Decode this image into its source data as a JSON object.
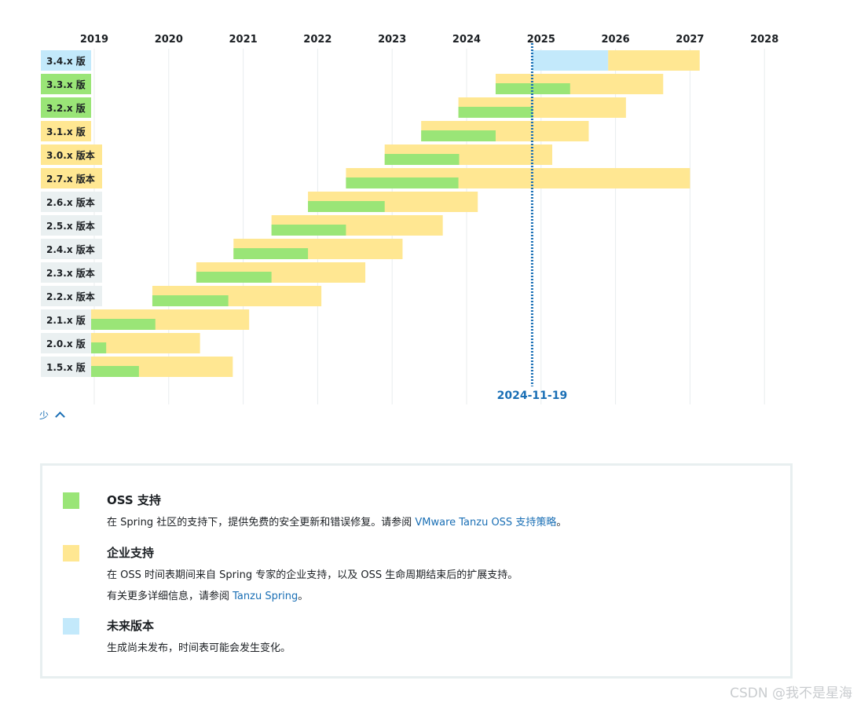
{
  "chart_data": {
    "type": "gantt",
    "years": [
      "2019",
      "2020",
      "2021",
      "2022",
      "2023",
      "2024",
      "2025",
      "2026",
      "2027",
      "2028"
    ],
    "today": {
      "label": "2024-11-19",
      "value": 2024.88
    },
    "rows": [
      {
        "label": "3.4.x 版",
        "label_color": "#c3e9fb",
        "future": [
          2024.88,
          2025.9
        ],
        "enterprise": [
          2025.9,
          2027.13
        ]
      },
      {
        "label": "3.3.x 版",
        "label_color": "#9ae577",
        "oss": [
          2024.39,
          2025.39
        ],
        "enterprise": [
          2024.39,
          2026.64
        ]
      },
      {
        "label": "3.2.x 版",
        "label_color": "#9ae577",
        "oss": [
          2023.89,
          2024.89
        ],
        "enterprise": [
          2023.89,
          2026.14
        ]
      },
      {
        "label": "3.1.x 版",
        "label_color": "#ffe792",
        "oss": [
          2023.39,
          2024.39
        ],
        "enterprise": [
          2023.39,
          2025.64
        ]
      },
      {
        "label": "3.0.x 版本",
        "label_color": "#ffe792",
        "oss": [
          2022.9,
          2023.9
        ],
        "enterprise": [
          2022.9,
          2025.15
        ]
      },
      {
        "label": "2.7.x 版本",
        "label_color": "#ffe792",
        "oss": [
          2022.38,
          2023.89
        ],
        "enterprise": [
          2022.38,
          2027.0
        ]
      },
      {
        "label": "2.6.x 版本",
        "label_color": "#eaf0f1",
        "oss": [
          2021.87,
          2022.9
        ],
        "enterprise": [
          2021.87,
          2024.15
        ]
      },
      {
        "label": "2.5.x 版本",
        "label_color": "#eaf0f1",
        "oss": [
          2021.38,
          2022.38
        ],
        "enterprise": [
          2021.38,
          2023.68
        ]
      },
      {
        "label": "2.4.x 版本",
        "label_color": "#eaf0f1",
        "oss": [
          2020.87,
          2021.87
        ],
        "enterprise": [
          2020.87,
          2023.14
        ]
      },
      {
        "label": "2.3.x 版本",
        "label_color": "#eaf0f1",
        "oss": [
          2020.37,
          2021.38
        ],
        "enterprise": [
          2020.37,
          2022.64
        ]
      },
      {
        "label": "2.2.x 版本",
        "label_color": "#eaf0f1",
        "oss": [
          2019.78,
          2020.8
        ],
        "enterprise": [
          2019.78,
          2022.05
        ]
      },
      {
        "label": "2.1.x 版",
        "label_color": "#eaf0f1",
        "oss": [
          2018.92,
          2019.82
        ],
        "enterprise": [
          2018.92,
          2021.08
        ]
      },
      {
        "label": "2.0.x 版",
        "label_color": "#eaf0f1",
        "oss": [
          2018.92,
          2019.16
        ],
        "enterprise": [
          2018.92,
          2020.42
        ]
      },
      {
        "label": "1.5.x 版",
        "label_color": "#eaf0f1",
        "oss": [
          2018.92,
          2019.6
        ],
        "enterprise": [
          2018.92,
          2020.86
        ]
      }
    ]
  },
  "colors": {
    "oss": "#9ae577",
    "enterprise": "#ffe792",
    "future": "#c3e9fb",
    "today": "#1a6fb5",
    "grid": "#e8ecee"
  },
  "toggle": {
    "label": "少"
  },
  "legend": {
    "oss": {
      "title": "OSS 支持",
      "desc_prefix": "在 Spring 社区的支持下，提供免费的安全更新和错误修复。请参阅 ",
      "link": "VMware Tanzu OSS 支持策略",
      "desc_suffix": "。"
    },
    "enterprise": {
      "title": "企业支持",
      "desc1": "在 OSS 时间表期间来自 Spring 专家的企业支持，以及 OSS 生命周期结束后的扩展支持。",
      "desc2_prefix": "有关更多详细信息，请参阅 ",
      "link": "Tanzu Spring",
      "desc2_suffix": "。"
    },
    "future": {
      "title": "未来版本",
      "desc": "生成尚未发布，时间表可能会发生变化。"
    }
  },
  "watermark": "CSDN @我不是星海"
}
